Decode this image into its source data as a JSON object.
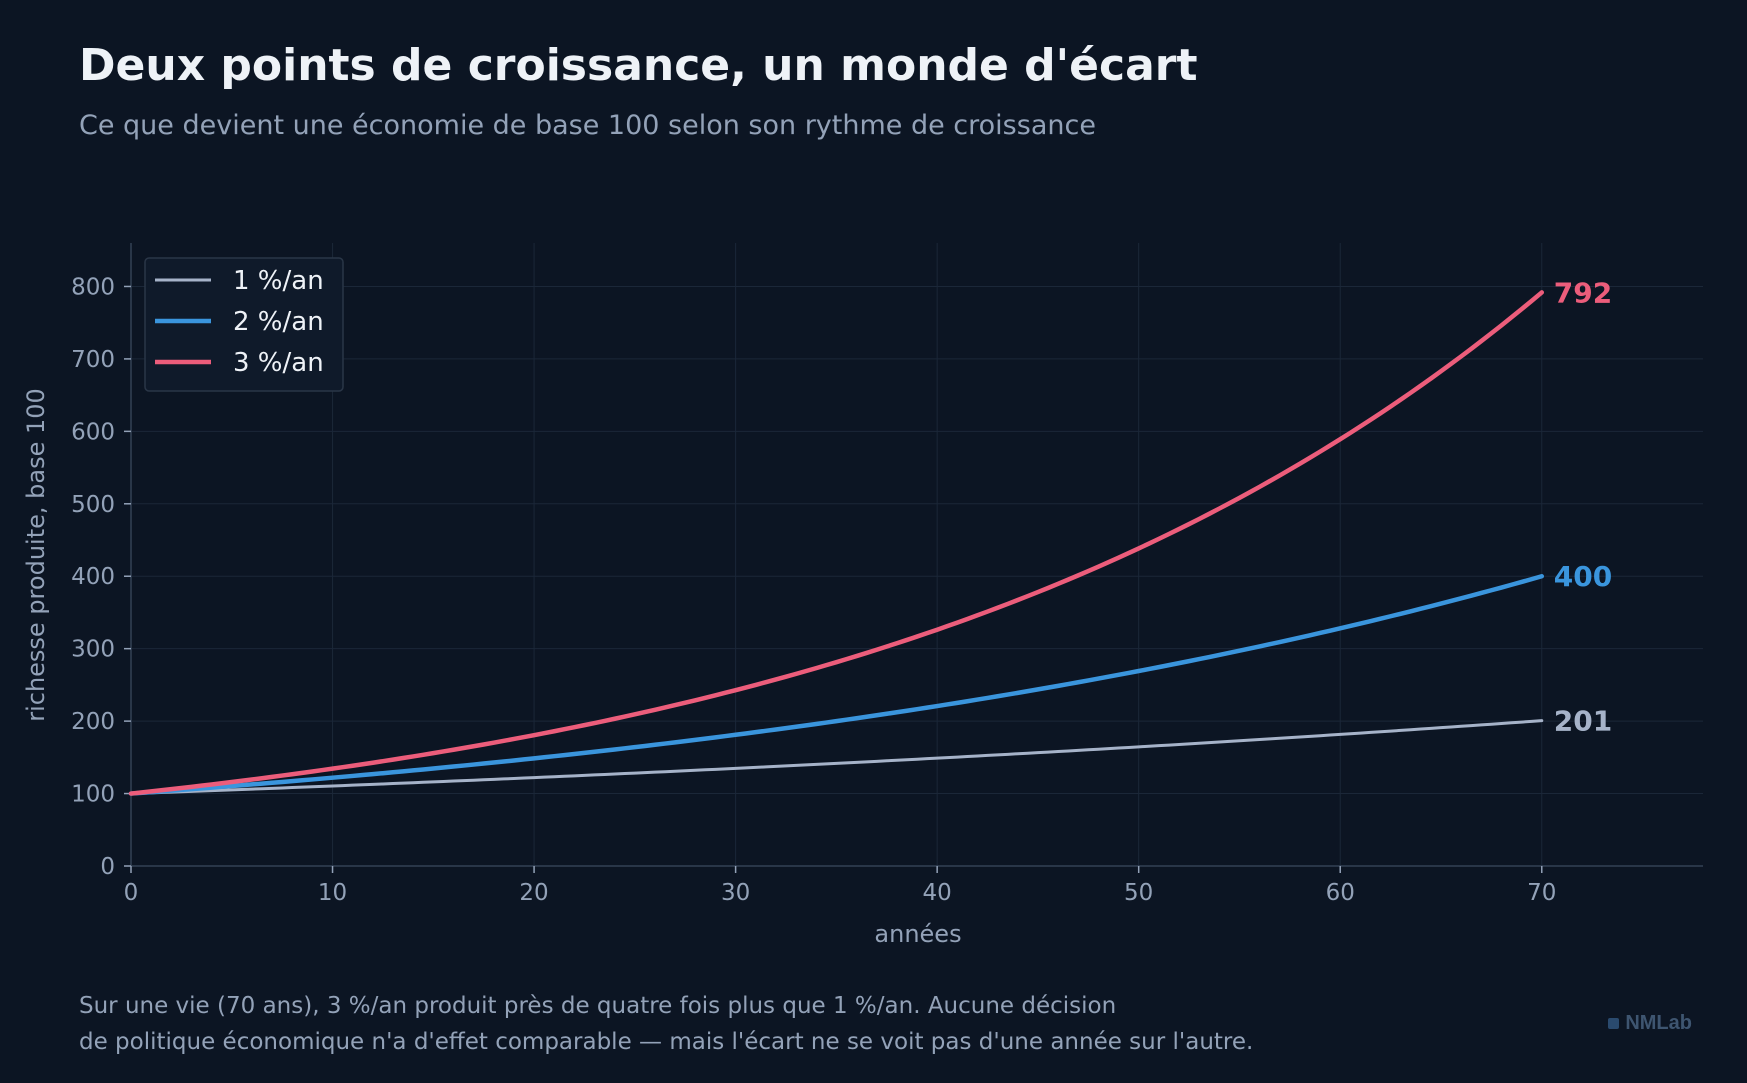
{
  "header": {
    "title": "Deux points de croissance, un monde d'écart",
    "subtitle": "Ce que devient une économie de base 100 selon son rythme de croissance"
  },
  "footer": {
    "caption_line1": "Sur une vie (70 ans), 3 %/an produit près de quatre fois plus que 1 %/an. Aucune décision",
    "caption_line2": "de politique économique n'a d'effet comparable — mais l'écart ne se voit pas d'une année sur l'autre.",
    "brand": "NMLab"
  },
  "colors": {
    "background": "#0c1523",
    "grid": "#1b2738",
    "axis": "#334155",
    "tick_text": "#93a2b8",
    "legend_text": "#eef2f7"
  },
  "chart_data": {
    "type": "line",
    "xlabel": "années",
    "ylabel": "richesse produite, base 100",
    "xlim": [
      0,
      78
    ],
    "ylim": [
      0,
      860
    ],
    "xticks": [
      0,
      10,
      20,
      30,
      40,
      50,
      60,
      70
    ],
    "yticks": [
      0,
      100,
      200,
      300,
      400,
      500,
      600,
      700,
      800
    ],
    "grid": true,
    "legend_position": "top-left",
    "base": 100,
    "years": 70,
    "series": [
      {
        "name": "1 %/an",
        "rate": 0.01,
        "color": "#a6b3c9",
        "end_label": "201",
        "end_value": 201
      },
      {
        "name": "2 %/an",
        "rate": 0.02,
        "color": "#3a95dd",
        "end_label": "400",
        "end_value": 400
      },
      {
        "name": "3 %/an",
        "rate": 0.03,
        "color": "#ec5d7b",
        "end_label": "792",
        "end_value": 792
      }
    ]
  }
}
